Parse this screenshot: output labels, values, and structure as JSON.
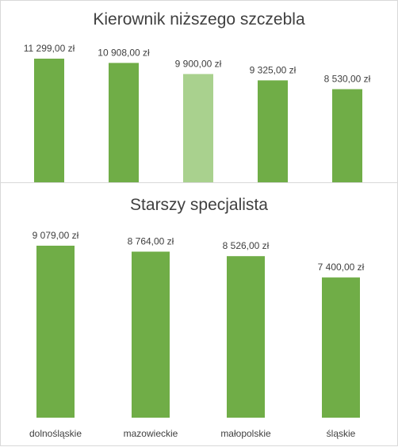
{
  "chart_data": [
    {
      "type": "bar",
      "title": "Kierownik niższego szczebla",
      "categories": [
        "dolnośląskie",
        "mazowieckie",
        "",
        "małopolskie",
        "śląskie"
      ],
      "values": [
        11299.0,
        10908.0,
        9900.0,
        9325.0,
        8530.0
      ],
      "data_labels": [
        "11 299,00 zł",
        "10 908,00 zł",
        "9 900,00 zł",
        "9 325,00 zł",
        "8 530,00 zł"
      ],
      "highlight_index": 2,
      "colors": {
        "bar": "#70ad47",
        "highlight": "#a9d18e"
      },
      "show_category_labels": false,
      "grid": false,
      "legend": "none"
    },
    {
      "type": "bar",
      "title": "Starszy specjalista",
      "categories": [
        "dolnośląskie",
        "mazowieckie",
        "małopolskie",
        "śląskie"
      ],
      "values": [
        9079.0,
        8764.0,
        8526.0,
        7400.0
      ],
      "data_labels": [
        "9 079,00 zł",
        "8 764,00 zł",
        "8 526,00 zł",
        "7 400,00 zł"
      ],
      "colors": {
        "bar": "#70ad47"
      },
      "show_category_labels": true,
      "grid": false,
      "legend": "none"
    }
  ]
}
